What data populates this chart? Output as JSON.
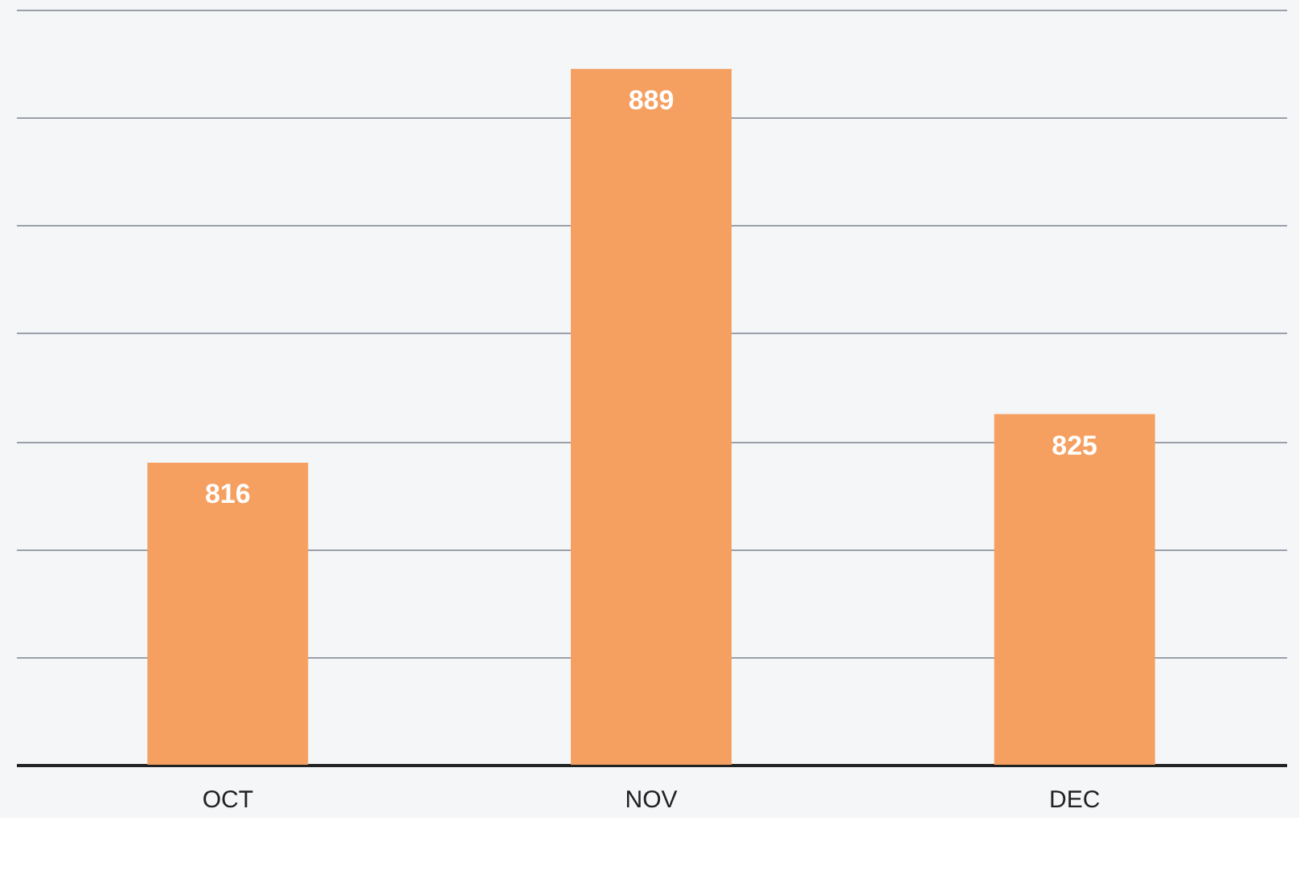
{
  "chart_data": {
    "type": "bar",
    "categories": [
      "OCT",
      "NOV",
      "DEC"
    ],
    "values": [
      816,
      889,
      825
    ],
    "color": "#f5a061",
    "data_labels": true,
    "ylim": [
      760,
      900
    ],
    "yticks": [
      {
        "value": 760,
        "label": null
      },
      {
        "value": 780,
        "label": null
      },
      {
        "value": 800,
        "label": null
      },
      {
        "value": 820,
        "label": null
      },
      {
        "value": 840,
        "label": null
      },
      {
        "value": 860,
        "label": null
      },
      {
        "value": 880,
        "label": null
      },
      {
        "value": 900,
        "label": null
      }
    ],
    "grid": "y",
    "tick_labels": "x"
  }
}
